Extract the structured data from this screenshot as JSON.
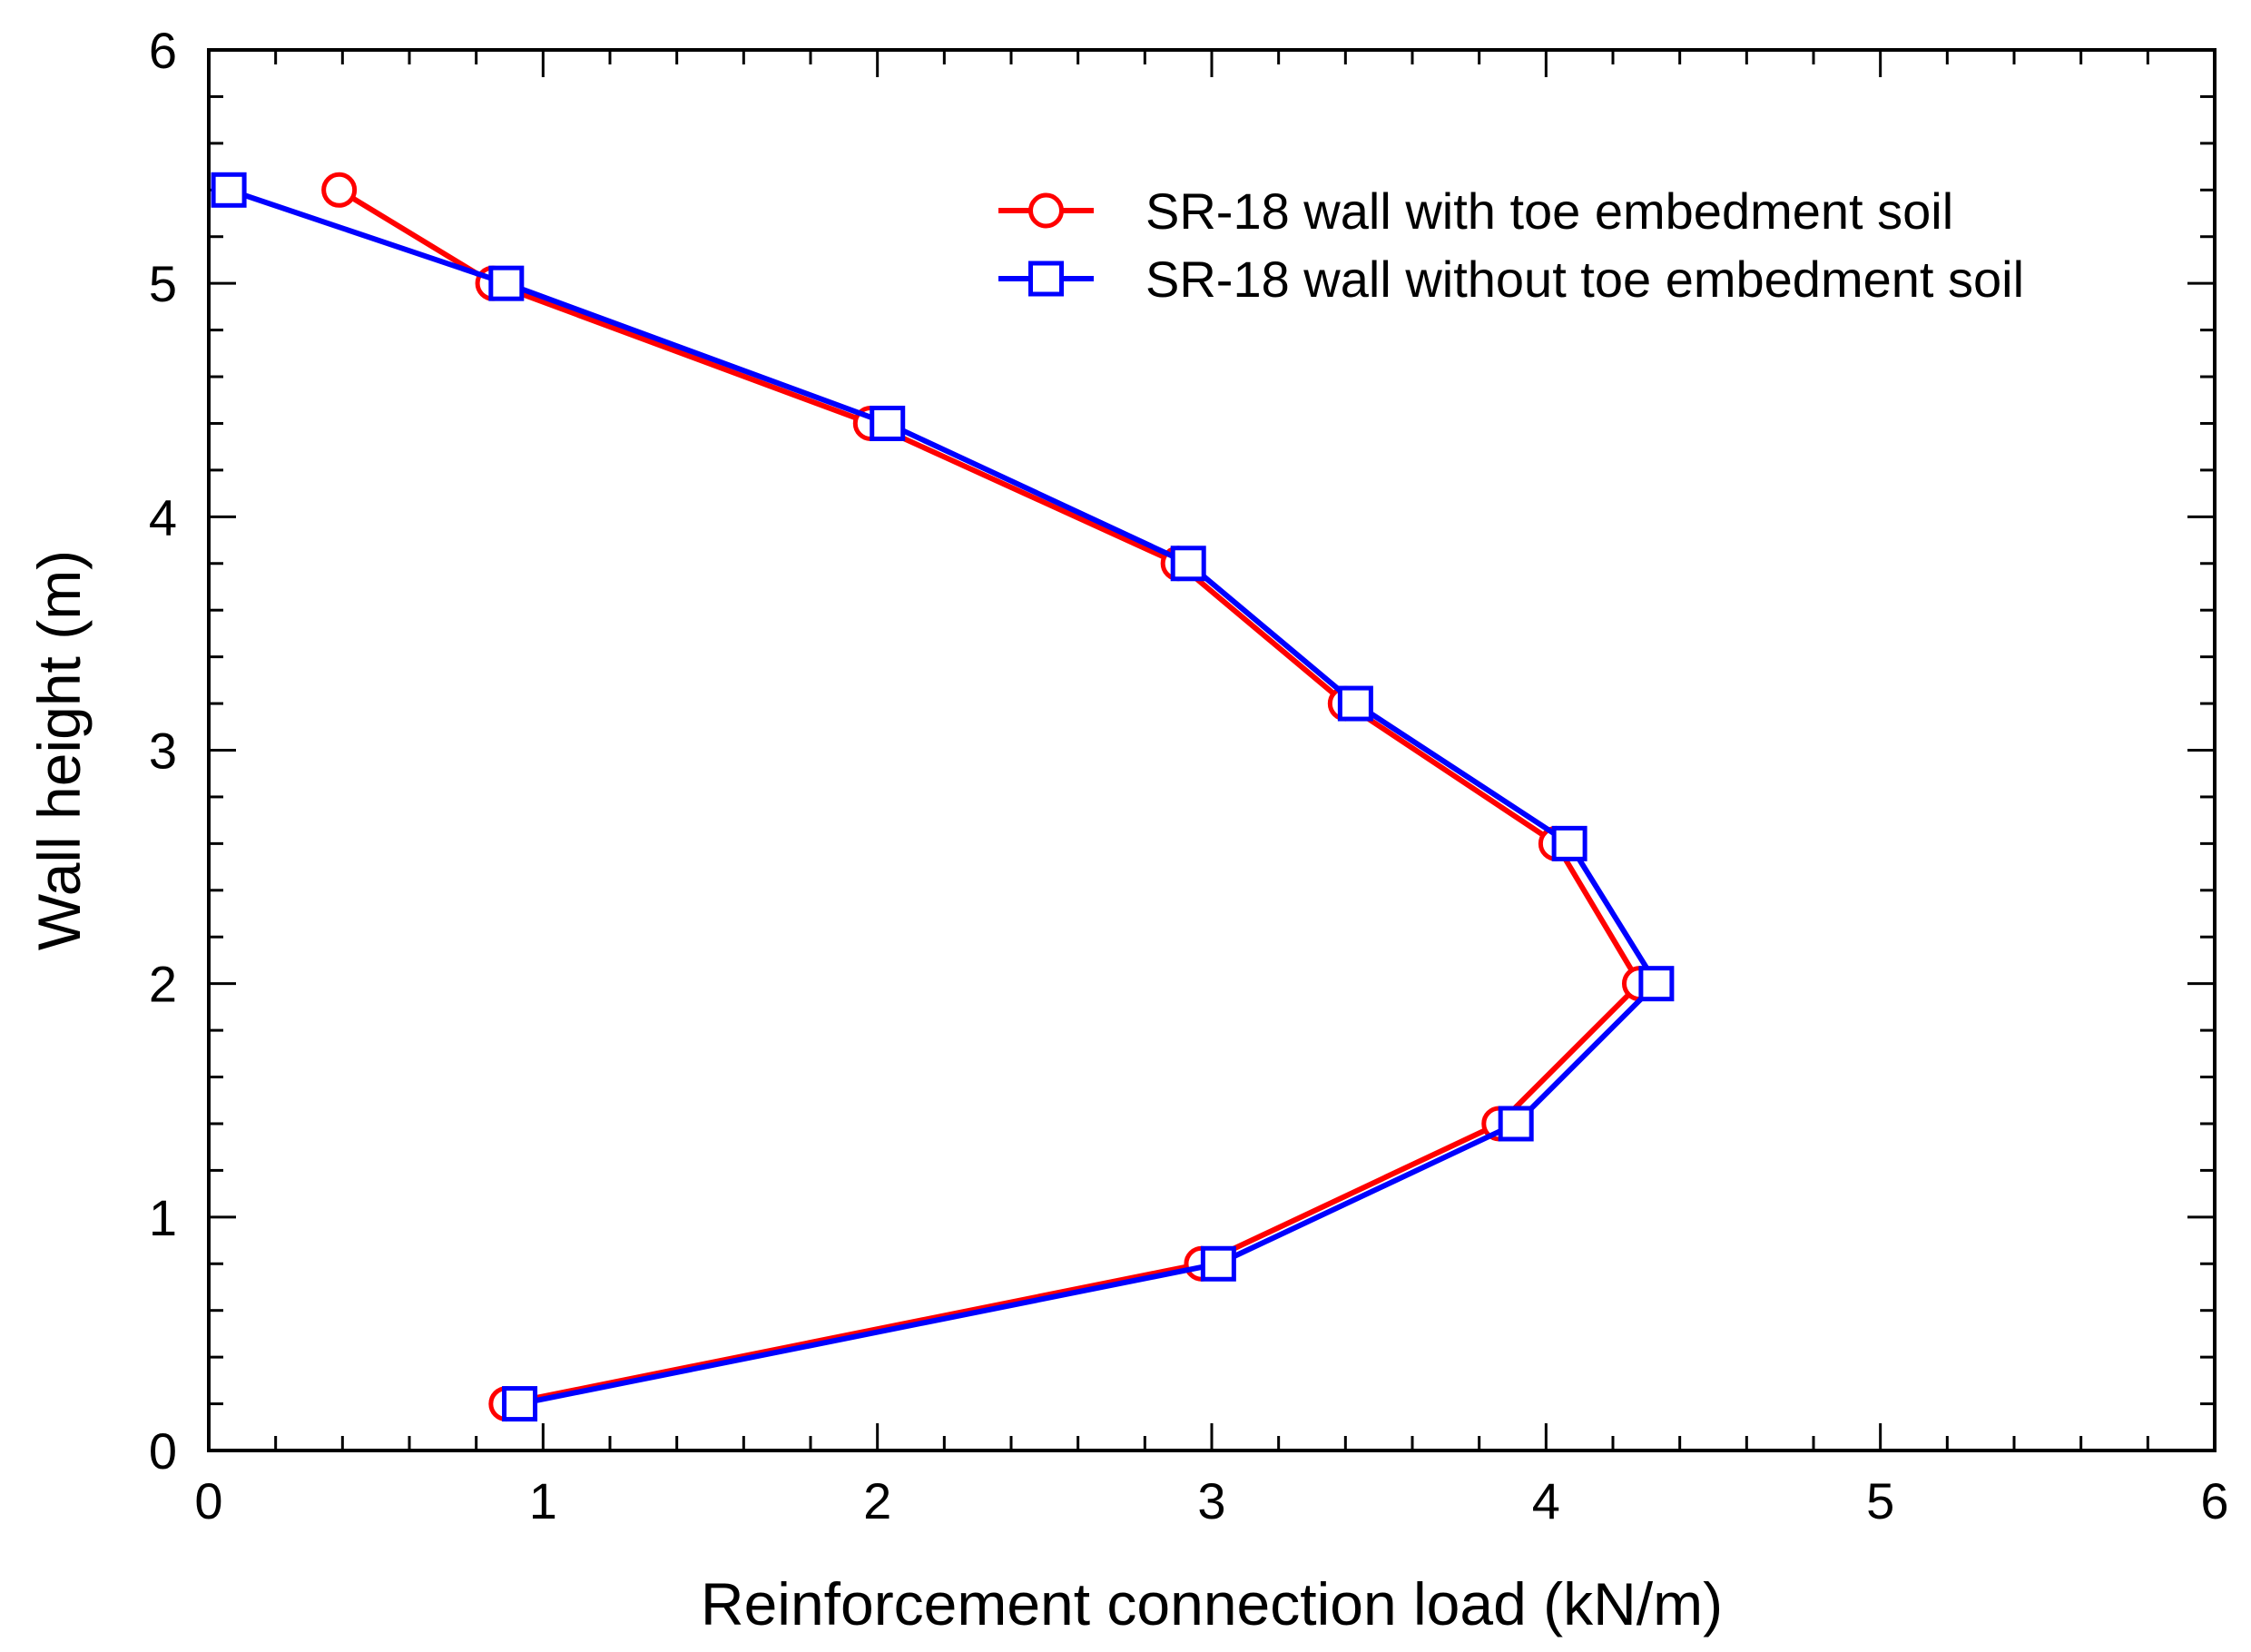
{
  "chart_data": {
    "type": "line",
    "title": "",
    "xlabel": "Reinforcement connection load (kN/m)",
    "ylabel": "Wall height (m)",
    "xlim": [
      0,
      6
    ],
    "ylim": [
      0,
      6
    ],
    "xticks": [
      0,
      1,
      2,
      3,
      4,
      5,
      6
    ],
    "yticks": [
      0,
      1,
      2,
      3,
      4,
      5,
      6
    ],
    "xtick_labels": [
      "0",
      "1",
      "2",
      "3",
      "4",
      "5",
      "6"
    ],
    "ytick_labels": [
      "0",
      "1",
      "2",
      "3",
      "4",
      "5",
      "6"
    ],
    "grid": false,
    "legend_position": "top-right",
    "series": [
      {
        "name": "SR-18 wall with toe embedment soil",
        "color": "#ff0000",
        "marker": "circle",
        "points": [
          {
            "x": 0.39,
            "y": 5.4
          },
          {
            "x": 0.85,
            "y": 5.0
          },
          {
            "x": 1.98,
            "y": 4.4
          },
          {
            "x": 2.9,
            "y": 3.8
          },
          {
            "x": 3.4,
            "y": 3.2
          },
          {
            "x": 4.03,
            "y": 2.6
          },
          {
            "x": 4.28,
            "y": 2.0
          },
          {
            "x": 3.86,
            "y": 1.4
          },
          {
            "x": 2.97,
            "y": 0.8
          },
          {
            "x": 0.89,
            "y": 0.2
          }
        ]
      },
      {
        "name": "SR-18 wall without toe embedment soil",
        "color": "#0000ff",
        "marker": "square",
        "points": [
          {
            "x": 0.06,
            "y": 5.4
          },
          {
            "x": 0.89,
            "y": 5.0
          },
          {
            "x": 2.03,
            "y": 4.4
          },
          {
            "x": 2.93,
            "y": 3.8
          },
          {
            "x": 3.43,
            "y": 3.2
          },
          {
            "x": 4.07,
            "y": 2.6
          },
          {
            "x": 4.33,
            "y": 2.0
          },
          {
            "x": 3.91,
            "y": 1.4
          },
          {
            "x": 3.02,
            "y": 0.8
          },
          {
            "x": 0.93,
            "y": 0.2
          }
        ]
      }
    ]
  }
}
